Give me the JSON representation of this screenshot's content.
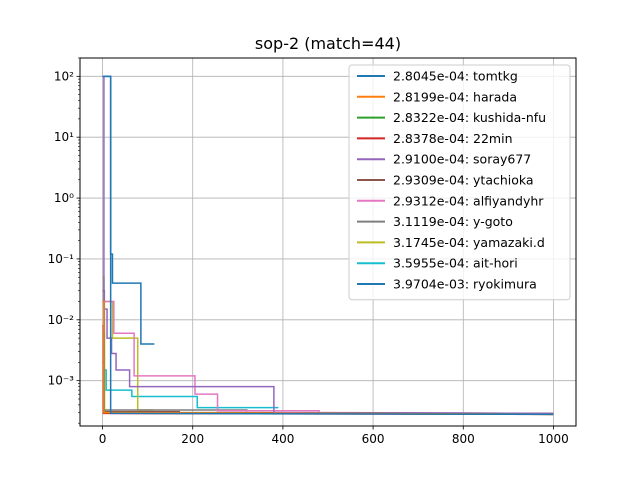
{
  "chart_data": {
    "type": "line",
    "title": "sop-2 (match=44)",
    "xlabel": "",
    "ylabel": "",
    "y_scale": "log",
    "xlim": [
      -50,
      1050
    ],
    "ylim": [
      0.00018,
      200
    ],
    "x_ticks": [
      0,
      200,
      400,
      600,
      800,
      1000
    ],
    "x_tick_labels": [
      "0",
      "200",
      "400",
      "600",
      "800",
      "1000"
    ],
    "y_ticks": [
      0.001,
      0.01,
      0.1,
      1,
      10,
      100
    ],
    "y_tick_labels": [
      "10⁻³",
      "10⁻²",
      "10⁻¹",
      "10⁰",
      "10¹",
      "10²"
    ],
    "grid": true,
    "legend_position": "top-right",
    "series": [
      {
        "name": "2.8045e-04: tomtkg",
        "color": "#1f77b4",
        "points": [
          [
            0,
            100
          ],
          [
            18,
            100
          ],
          [
            18,
            0.00029
          ],
          [
            1000,
            0.00028
          ]
        ]
      },
      {
        "name": "2.8199e-04: harada",
        "color": "#ff7f0e",
        "points": [
          [
            0,
            0.02
          ],
          [
            3,
            0.02
          ],
          [
            3,
            0.0003
          ],
          [
            1000,
            0.00028
          ]
        ]
      },
      {
        "name": "2.8322e-04: kushida-nfu",
        "color": "#2ca02c",
        "points": [
          [
            0,
            0.006
          ],
          [
            4,
            0.006
          ],
          [
            4,
            0.0003
          ],
          [
            1000,
            0.00028
          ]
        ]
      },
      {
        "name": "2.8378e-04: 22min",
        "color": "#d62728",
        "points": [
          [
            0,
            0.008
          ],
          [
            2,
            0.008
          ],
          [
            2,
            0.00029
          ],
          [
            1000,
            0.00028
          ]
        ]
      },
      {
        "name": "2.9100e-04: soray677",
        "color": "#9467bd",
        "points": [
          [
            0,
            100
          ],
          [
            3,
            100
          ],
          [
            3,
            0.015
          ],
          [
            10,
            0.015
          ],
          [
            10,
            0.005
          ],
          [
            20,
            0.005
          ],
          [
            20,
            0.0028
          ],
          [
            30,
            0.0028
          ],
          [
            30,
            0.0015
          ],
          [
            60,
            0.0015
          ],
          [
            60,
            0.0008
          ],
          [
            380,
            0.0008
          ],
          [
            380,
            0.0003
          ],
          [
            1000,
            0.00029
          ]
        ]
      },
      {
        "name": "2.9309e-04: ytachioka",
        "color": "#8c564b",
        "points": [
          [
            0,
            0.002
          ],
          [
            3,
            0.002
          ],
          [
            3,
            0.00031
          ],
          [
            170,
            0.00031
          ],
          [
            170,
            0.0003
          ],
          [
            1000,
            0.00029
          ]
        ]
      },
      {
        "name": "2.9312e-04: alfiyandyhr",
        "color": "#e377c2",
        "points": [
          [
            0,
            0.02
          ],
          [
            25,
            0.02
          ],
          [
            25,
            0.006
          ],
          [
            70,
            0.006
          ],
          [
            70,
            0.0012
          ],
          [
            205,
            0.0012
          ],
          [
            205,
            0.0006
          ],
          [
            255,
            0.0006
          ],
          [
            255,
            0.00032
          ],
          [
            480,
            0.00032
          ],
          [
            480,
            0.0003
          ],
          [
            1000,
            0.00029
          ]
        ]
      },
      {
        "name": "3.1119e-04: y-goto",
        "color": "#7f7f7f",
        "points": [
          [
            0,
            0.03
          ],
          [
            4,
            0.03
          ],
          [
            4,
            0.00033
          ],
          [
            320,
            0.00033
          ],
          [
            320,
            0.00031
          ]
        ]
      },
      {
        "name": "3.1745e-04: yamazaki.d",
        "color": "#bcbd22",
        "points": [
          [
            0,
            0.05
          ],
          [
            3,
            0.05
          ],
          [
            3,
            0.02
          ],
          [
            22,
            0.02
          ],
          [
            22,
            0.005
          ],
          [
            78,
            0.005
          ],
          [
            78,
            0.00033
          ],
          [
            110,
            0.00033
          ],
          [
            110,
            0.00032
          ]
        ]
      },
      {
        "name": "3.5955e-04: ait-hori",
        "color": "#17becf",
        "points": [
          [
            0,
            0.05
          ],
          [
            3,
            0.05
          ],
          [
            3,
            0.0015
          ],
          [
            8,
            0.0015
          ],
          [
            8,
            0.0007
          ],
          [
            65,
            0.0007
          ],
          [
            65,
            0.00055
          ],
          [
            210,
            0.00055
          ],
          [
            210,
            0.00036
          ],
          [
            390,
            0.00036
          ]
        ]
      },
      {
        "name": "3.9704e-03: ryokimura",
        "color": "#1f77b4",
        "points": [
          [
            0,
            100
          ],
          [
            18,
            100
          ],
          [
            18,
            0.12
          ],
          [
            22,
            0.12
          ],
          [
            22,
            0.04
          ],
          [
            85,
            0.04
          ],
          [
            85,
            0.004
          ],
          [
            115,
            0.004
          ]
        ]
      }
    ]
  }
}
